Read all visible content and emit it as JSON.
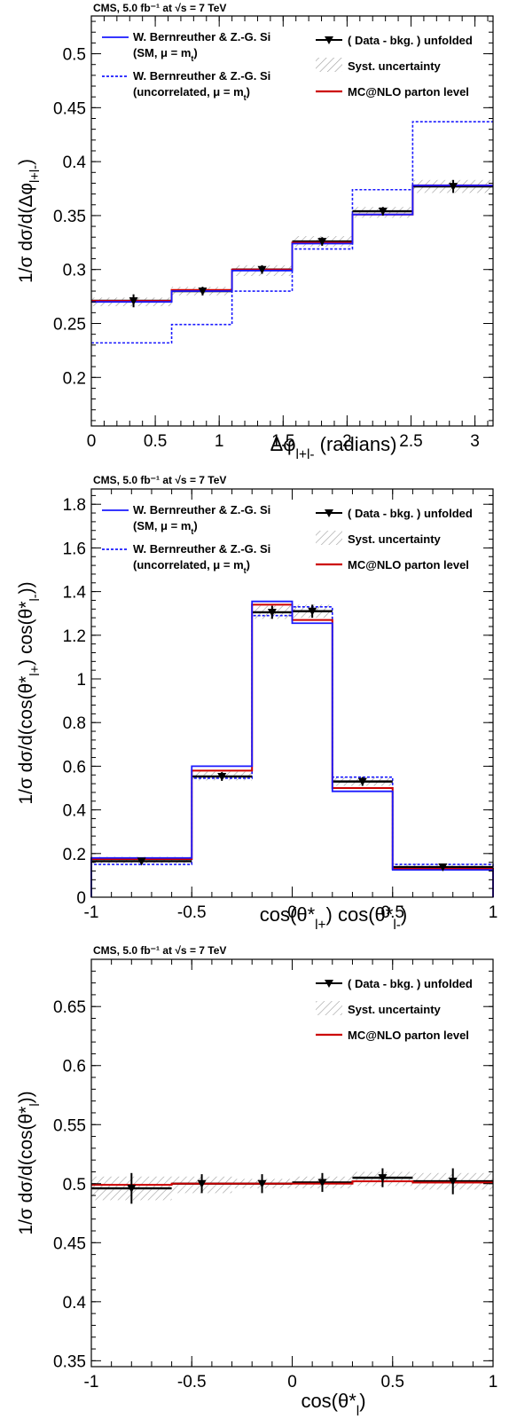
{
  "colors": {
    "data": "#000000",
    "sm": "#1a1aff",
    "uncorrelated": "#1a1aff",
    "mcnlo": "#cc0000",
    "hatch": "#9a9a9a"
  },
  "chart_data": [
    {
      "type": "line",
      "header": "CMS, 5.0 fb⁻¹ at √s = 7 TeV",
      "xlabel": "Δφ_l+l- (radians)",
      "ylabel": "1/σ dσ/d(Δφ_l+l-)",
      "xlim": [
        0,
        3.1416
      ],
      "ylim": [
        0.155,
        0.535
      ],
      "xticks": [
        0,
        0.5,
        1,
        1.5,
        2,
        2.5,
        3
      ],
      "xtick_labels": [
        "0",
        "0.5",
        "1",
        "1.5",
        "2",
        "2.5",
        "3"
      ],
      "yticks": [
        0.2,
        0.25,
        0.3,
        0.35,
        0.4,
        0.45,
        0.5
      ],
      "ytick_labels": [
        "0.2",
        "0.25",
        "0.3",
        "0.35",
        "0.4",
        "0.45",
        "0.5"
      ],
      "legend_position": "top",
      "legend_left": [
        {
          "key": "sm",
          "line1": "W. Bernreuther & Z.-G. Si",
          "line2": "(SM, μ = m_t)"
        },
        {
          "key": "uncorrelated",
          "line1": "W. Bernreuther & Z.-G. Si",
          "line2": "(uncorrelated, μ = m_t)"
        }
      ],
      "legend_right": [
        {
          "key": "data",
          "label": "( Data - bkg. ) unfolded"
        },
        {
          "key": "hatch",
          "label": "Syst. uncertainty"
        },
        {
          "key": "mcnlo",
          "label": "MC@NLO parton level"
        }
      ],
      "bin_edges": [
        0,
        0.628,
        1.1,
        1.571,
        2.042,
        2.513,
        3.1416
      ],
      "series": [
        {
          "key": "data",
          "points_x": [
            0.33,
            0.87,
            1.335,
            1.805,
            2.28,
            2.83
          ],
          "values": [
            0.271,
            0.28,
            0.3,
            0.326,
            0.354,
            0.377
          ],
          "errors": [
            0.006,
            0.004,
            0.004,
            0.004,
            0.004,
            0.006
          ]
        },
        {
          "key": "hatch",
          "values": [
            0.27,
            0.28,
            0.299,
            0.326,
            0.353,
            0.377
          ],
          "errors": [
            0.004,
            0.004,
            0.005,
            0.005,
            0.005,
            0.006
          ]
        },
        {
          "key": "mcnlo",
          "values": [
            0.271,
            0.281,
            0.3,
            0.325,
            0.351,
            0.378
          ]
        },
        {
          "key": "sm",
          "values": [
            0.27,
            0.28,
            0.299,
            0.324,
            0.351,
            0.378
          ]
        },
        {
          "key": "uncorrelated",
          "values": [
            0.232,
            0.249,
            0.28,
            0.319,
            0.374,
            0.437
          ]
        }
      ]
    },
    {
      "type": "line",
      "header": "CMS, 5.0 fb⁻¹ at √s = 7 TeV",
      "xlabel": "cos(θ*_l+) cos(θ*_l-)",
      "ylabel": "1/σ dσ/d(cos(θ*_l+) cos(θ*_l-))",
      "xlim": [
        -1,
        1
      ],
      "ylim": [
        0,
        1.87
      ],
      "xticks": [
        -1,
        -0.5,
        0,
        0.5,
        1
      ],
      "xtick_labels": [
        "-1",
        "-0.5",
        "0",
        "0.5",
        "1"
      ],
      "yticks": [
        0,
        0.2,
        0.4,
        0.6,
        0.8,
        1,
        1.2,
        1.4,
        1.6,
        1.8
      ],
      "ytick_labels": [
        "0",
        "0.2",
        "0.4",
        "0.6",
        "0.8",
        "1",
        "1.2",
        "1.4",
        "1.6",
        "1.8"
      ],
      "legend_position": "top",
      "legend_left": [
        {
          "key": "sm",
          "line1": "W. Bernreuther & Z.-G. Si",
          "line2": "(SM, μ = m_t)"
        },
        {
          "key": "uncorrelated",
          "line1": "W. Bernreuther & Z.-G. Si",
          "line2": "(uncorrelated, μ = m_t)"
        }
      ],
      "legend_right": [
        {
          "key": "data",
          "label": "( Data - bkg. ) unfolded"
        },
        {
          "key": "hatch",
          "label": "Syst. uncertainty"
        },
        {
          "key": "mcnlo",
          "label": "MC@NLO parton level"
        }
      ],
      "bin_edges": [
        -1,
        -0.5,
        -0.2,
        0,
        0.2,
        0.5,
        1
      ],
      "series": [
        {
          "key": "data",
          "points_x": [
            -0.75,
            -0.35,
            -0.1,
            0.1,
            0.35,
            0.75
          ],
          "values": [
            0.165,
            0.553,
            1.305,
            1.31,
            0.53,
            0.138
          ],
          "errors": [
            0.01,
            0.02,
            0.03,
            0.03,
            0.02,
            0.01
          ]
        },
        {
          "key": "hatch",
          "values": [
            0.17,
            0.555,
            1.305,
            1.31,
            0.53,
            0.14
          ],
          "errors": [
            0.015,
            0.02,
            0.03,
            0.03,
            0.02,
            0.015
          ]
        },
        {
          "key": "mcnlo",
          "values": [
            0.175,
            0.58,
            1.34,
            1.27,
            0.5,
            0.13
          ]
        },
        {
          "key": "sm",
          "values": [
            0.18,
            0.6,
            1.355,
            1.255,
            0.485,
            0.125
          ]
        },
        {
          "key": "uncorrelated",
          "values": [
            0.15,
            0.545,
            1.29,
            1.33,
            0.55,
            0.15
          ]
        }
      ]
    },
    {
      "type": "line",
      "header": "CMS, 5.0 fb⁻¹ at √s = 7 TeV",
      "xlabel": "cos(θ*_l)",
      "ylabel": "1/σ dσ/d(cos(θ*_l))",
      "xlim": [
        -1,
        1
      ],
      "ylim": [
        0.345,
        0.69
      ],
      "xticks": [
        -1,
        -0.5,
        0,
        0.5,
        1
      ],
      "xtick_labels": [
        "-1",
        "-0.5",
        "0",
        "0.5",
        "1"
      ],
      "yticks": [
        0.35,
        0.4,
        0.45,
        0.5,
        0.55,
        0.6,
        0.65
      ],
      "ytick_labels": [
        "0.35",
        "0.4",
        "0.45",
        "0.5",
        "0.55",
        "0.6",
        "0.65"
      ],
      "legend_position": "top-right",
      "legend_left": [],
      "legend_right": [
        {
          "key": "data",
          "label": "( Data - bkg. ) unfolded"
        },
        {
          "key": "hatch",
          "label": "Syst. uncertainty"
        },
        {
          "key": "mcnlo",
          "label": "MC@NLO parton level"
        }
      ],
      "bin_edges": [
        -1,
        -0.6,
        -0.3,
        0,
        0.3,
        0.6,
        1
      ],
      "series": [
        {
          "key": "data",
          "points_x": [
            -0.8,
            -0.45,
            -0.15,
            0.15,
            0.45,
            0.8
          ],
          "values": [
            0.496,
            0.5,
            0.5,
            0.501,
            0.505,
            0.502
          ],
          "errors": [
            0.013,
            0.008,
            0.008,
            0.008,
            0.008,
            0.011
          ]
        },
        {
          "key": "hatch",
          "values": [
            0.496,
            0.499,
            0.5,
            0.501,
            0.504,
            0.502
          ],
          "errors": [
            0.01,
            0.007,
            0.004,
            0.005,
            0.006,
            0.007
          ]
        },
        {
          "key": "mcnlo",
          "values": [
            0.499,
            0.5,
            0.5,
            0.5,
            0.502,
            0.501
          ]
        }
      ]
    }
  ]
}
